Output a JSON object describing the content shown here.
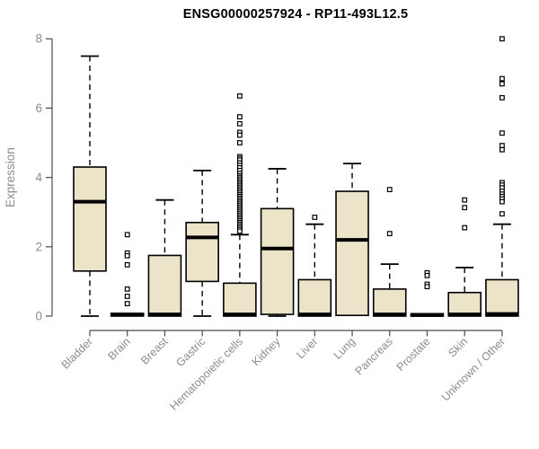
{
  "chart_data": {
    "type": "box",
    "title": "ENSG00000257924 - RP11-493L12.5",
    "xlabel": "",
    "ylabel": "Expression",
    "ylim": [
      0,
      8
    ],
    "yticks": [
      0,
      2,
      4,
      6,
      8
    ],
    "grid": false,
    "legend": "none",
    "box_fill_color": "#ebe4c9",
    "box_line_color": "#000000",
    "axis_text_color": "#8c8c8c",
    "categories": [
      "Bladder",
      "Brain",
      "Breast",
      "Gastric",
      "Hematopoietic cells",
      "Kidney",
      "Liver",
      "Lung",
      "Pancreas",
      "Prostate",
      "Skin",
      "Unknown / Other"
    ],
    "boxes": [
      {
        "category": "Bladder",
        "low": 0,
        "q1": 1.3,
        "median": 3.3,
        "q3": 4.3,
        "high": 7.5,
        "outliers": []
      },
      {
        "category": "Brain",
        "low": 0,
        "q1": 0,
        "median": 0.04,
        "q3": 0.08,
        "high": 0.08,
        "outliers": [
          2.35,
          1.82,
          1.74,
          1.48,
          0.78,
          0.57,
          0.36
        ]
      },
      {
        "category": "Breast",
        "low": 0,
        "q1": 0,
        "median": 0.05,
        "q3": 1.75,
        "high": 3.35,
        "outliers": []
      },
      {
        "category": "Gastric",
        "low": 0,
        "q1": 1.0,
        "median": 2.27,
        "q3": 2.7,
        "high": 4.2,
        "outliers": []
      },
      {
        "category": "Hematopoietic cells",
        "low": 0,
        "q1": 0,
        "median": 0.05,
        "q3": 0.95,
        "high": 2.35,
        "outliers": [
          6.35,
          5.75,
          5.55,
          5.3,
          5.22,
          5.0,
          4.6,
          4.55,
          4.5,
          4.42,
          4.35,
          4.28,
          4.2,
          4.12,
          4.05,
          4.0,
          3.95,
          3.9,
          3.85,
          3.8,
          3.75,
          3.7,
          3.65,
          3.6,
          3.55,
          3.5,
          3.45,
          3.4,
          3.35,
          3.3,
          3.25,
          3.2,
          3.15,
          3.1,
          3.05,
          3.0,
          2.95,
          2.9,
          2.85,
          2.8,
          2.75,
          2.7,
          2.65,
          2.6,
          2.55,
          2.5,
          2.45
        ]
      },
      {
        "category": "Kidney",
        "low": 0,
        "q1": 0.05,
        "median": 1.95,
        "q3": 3.1,
        "high": 4.25,
        "outliers": []
      },
      {
        "category": "Liver",
        "low": 0,
        "q1": 0,
        "median": 0.05,
        "q3": 1.05,
        "high": 2.65,
        "outliers": [
          2.85
        ]
      },
      {
        "category": "Lung",
        "low": 0,
        "q1": 0.02,
        "median": 2.2,
        "q3": 3.6,
        "high": 4.4,
        "outliers": []
      },
      {
        "category": "Pancreas",
        "low": 0,
        "q1": 0,
        "median": 0.05,
        "q3": 0.78,
        "high": 1.5,
        "outliers": [
          3.65,
          2.38
        ]
      },
      {
        "category": "Prostate",
        "low": 0,
        "q1": 0,
        "median": 0.03,
        "q3": 0.07,
        "high": 0.07,
        "outliers": [
          1.25,
          1.17,
          0.92,
          0.85
        ]
      },
      {
        "category": "Skin",
        "low": 0,
        "q1": 0,
        "median": 0.05,
        "q3": 0.68,
        "high": 1.4,
        "outliers": [
          3.35,
          3.13,
          2.55
        ]
      },
      {
        "category": "Unknown / Other",
        "low": 0,
        "q1": 0,
        "median": 0.06,
        "q3": 1.05,
        "high": 2.65,
        "outliers": [
          8.0,
          6.85,
          6.7,
          6.3,
          5.28,
          4.92,
          4.8,
          3.85,
          3.78,
          3.7,
          3.6,
          3.52,
          3.45,
          3.38,
          3.3,
          2.95
        ]
      }
    ]
  }
}
